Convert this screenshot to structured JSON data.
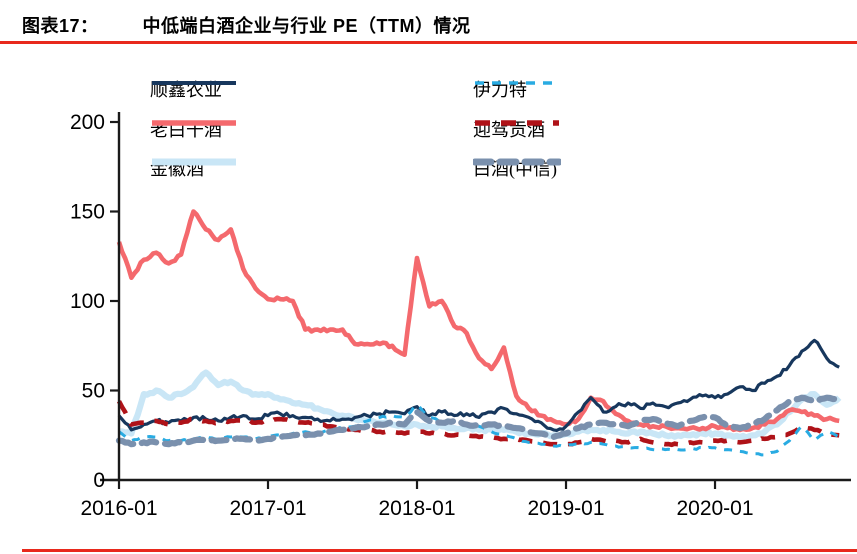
{
  "header": {
    "label": "图表17：",
    "title": "中低端白酒企业与行业 PE（TTM）情况"
  },
  "accent": {
    "rule_color": "#e8291c",
    "axis_color": "#1a1a1a"
  },
  "chart_data": {
    "type": "line",
    "title": "中低端白酒企业与行业 PE（TTM）情况",
    "ylabel": "",
    "xlabel": "",
    "ylim": [
      0,
      200
    ],
    "y_ticks": [
      0,
      50,
      100,
      150,
      200
    ],
    "x_tick_labels": [
      "2016-01",
      "2017-01",
      "2018-01",
      "2019-01",
      "2020-01"
    ],
    "x_start": "2016-01",
    "x_end": "2020-11",
    "x_interval": "monthly",
    "grid": "off",
    "legend_position": "top",
    "series": [
      {
        "name": "顺鑫农业",
        "color": "#17375d",
        "style": "solid",
        "values": [
          36,
          28,
          31,
          33,
          32,
          33,
          35,
          34,
          33,
          35,
          36,
          34,
          36,
          37,
          36,
          35,
          34,
          33,
          34,
          35,
          36,
          37,
          38,
          37,
          41,
          36,
          38,
          36,
          37,
          35,
          38,
          40,
          37,
          35,
          32,
          28,
          30,
          38,
          46,
          38,
          41,
          43,
          40,
          43,
          41,
          43,
          45,
          47,
          46,
          48,
          52,
          50,
          54,
          58,
          64,
          72,
          78,
          68,
          63
        ]
      },
      {
        "name": "老白干酒",
        "color": "#f4696d",
        "style": "solid",
        "values": [
          133,
          113,
          123,
          127,
          121,
          126,
          150,
          140,
          134,
          140,
          118,
          107,
          101,
          101,
          100,
          84,
          84,
          84,
          84,
          76,
          76,
          76,
          75,
          70,
          124,
          97,
          100,
          86,
          82,
          68,
          62,
          74,
          47,
          40,
          36,
          33,
          31,
          34,
          46,
          44,
          37,
          33,
          31,
          30,
          30,
          29,
          29,
          29,
          30,
          29,
          28,
          29,
          31,
          34,
          39,
          38,
          36,
          34,
          33
        ]
      },
      {
        "name": "金徽酒",
        "color": "#c9e6f6",
        "style": "solid",
        "values": [
          27,
          26,
          48,
          50,
          46,
          48,
          52,
          60,
          53,
          55,
          50,
          48,
          48,
          45,
          43,
          42,
          40,
          38,
          36,
          34,
          33,
          32,
          31,
          30,
          31,
          30,
          30,
          29,
          29,
          28,
          28,
          28,
          27,
          26,
          26,
          25,
          26,
          27,
          28,
          28,
          27,
          26,
          27,
          26,
          25,
          25,
          25,
          26,
          26,
          25,
          24,
          25,
          27,
          31,
          38,
          45,
          48,
          42,
          46
        ]
      },
      {
        "name": "伊力特",
        "color": "#29abe2",
        "style": "dashed",
        "values": [
          27,
          22,
          24,
          24,
          22,
          22,
          23,
          24,
          23,
          24,
          24,
          23,
          24,
          25,
          26,
          27,
          26,
          28,
          29,
          30,
          33,
          35,
          36,
          35,
          42,
          35,
          33,
          32,
          31,
          30,
          27,
          25,
          23,
          21,
          20,
          19,
          19,
          20,
          21,
          20,
          19,
          18,
          18,
          17,
          17,
          17,
          17,
          18,
          18,
          17,
          16,
          15,
          14,
          16,
          22,
          30,
          22,
          27,
          24
        ]
      },
      {
        "name": "迎驾贡酒",
        "color": "#af1218",
        "style": "dashed",
        "values": [
          44,
          31,
          32,
          33,
          31,
          32,
          34,
          33,
          32,
          33,
          34,
          32,
          33,
          34,
          33,
          32,
          31,
          30,
          29,
          28,
          28,
          27,
          27,
          26,
          27,
          26,
          26,
          25,
          25,
          24,
          24,
          23,
          23,
          22,
          21,
          20,
          20,
          21,
          23,
          22,
          22,
          21,
          23,
          21,
          20,
          20,
          21,
          21,
          22,
          22,
          21,
          22,
          23,
          24,
          26,
          30,
          28,
          26,
          25
        ]
      },
      {
        "name": "白酒(中信)",
        "color": "#7a90ad",
        "style": "dashed",
        "values": [
          22,
          20,
          21,
          21,
          20,
          21,
          22,
          22,
          22,
          23,
          23,
          22,
          23,
          24,
          25,
          25,
          26,
          27,
          28,
          29,
          30,
          31,
          32,
          31,
          38,
          33,
          32,
          33,
          31,
          30,
          31,
          30,
          29,
          27,
          26,
          24,
          26,
          29,
          31,
          32,
          31,
          30,
          33,
          34,
          32,
          30,
          33,
          35,
          35,
          30,
          29,
          31,
          34,
          39,
          44,
          46,
          44,
          46,
          45
        ]
      }
    ]
  }
}
